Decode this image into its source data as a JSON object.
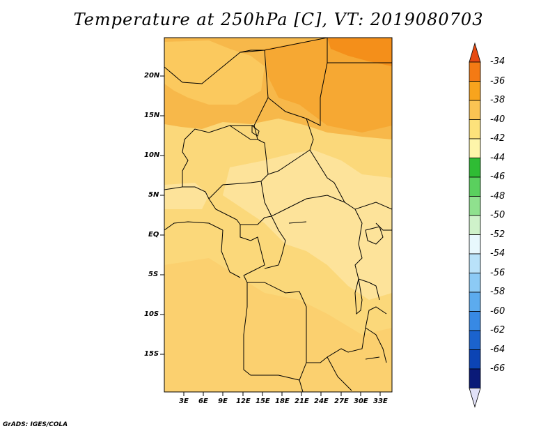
{
  "title": "Temperature at 250hPa [C], VT: 2019080703",
  "footer": "GrADS: IGES/COLA",
  "map": {
    "lat_labels": [
      "20N",
      "15N",
      "10N",
      "5N",
      "EQ",
      "5S",
      "10S",
      "15S"
    ],
    "lon_labels": [
      "3E",
      "6E",
      "9E",
      "12E",
      "15E",
      "18E",
      "21E",
      "24E",
      "27E",
      "30E",
      "33E"
    ]
  },
  "colorbar": {
    "labels": [
      "-34",
      "-36",
      "-38",
      "-40",
      "-42",
      "-44",
      "-46",
      "-48",
      "-50",
      "-52",
      "-54",
      "-56",
      "-58",
      "-60",
      "-62",
      "-64",
      "-66"
    ],
    "colors": [
      "#e64a12",
      "#f47a14",
      "#f8a41d",
      "#fbc353",
      "#fde27b",
      "#fef5aa",
      "#2fbc34",
      "#5ad05e",
      "#8fe18e",
      "#cff2ca",
      "#e8f8fd",
      "#b9e2f9",
      "#8ccaf5",
      "#5cabee",
      "#3789e4",
      "#1b63cd",
      "#0c44b4",
      "#0a1a78",
      "#e1e1f7"
    ]
  }
}
